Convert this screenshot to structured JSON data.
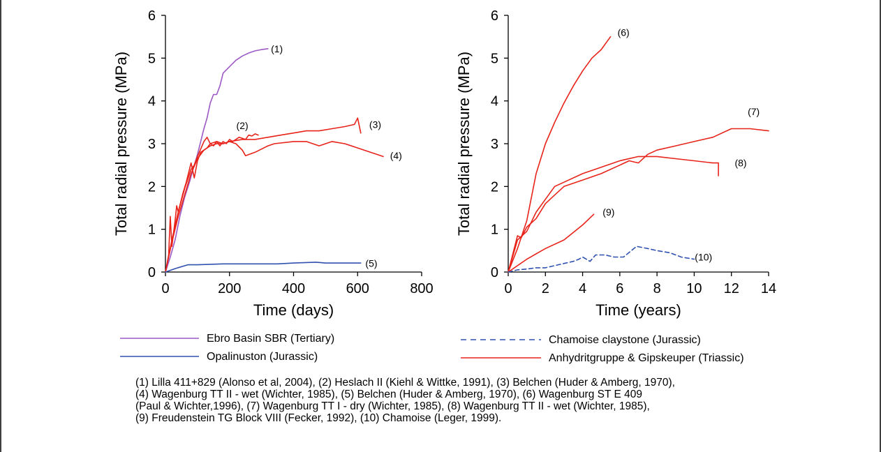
{
  "colors": {
    "ebro": "#9b59c6",
    "opalinus": "#3050b0",
    "chamoise": "#3050b0",
    "anhydrite": "#e8231a"
  },
  "chart_data": [
    {
      "type": "line",
      "xlabel": "Time (days)",
      "ylabel": "Total radial pressure (MPa)",
      "xlim": [
        0,
        800
      ],
      "ylim": [
        0,
        6
      ],
      "xticks": [
        "0",
        "200",
        "400",
        "600",
        "800"
      ],
      "yticks": [
        "0",
        "1",
        "2",
        "3",
        "4",
        "5",
        "6"
      ],
      "series": [
        {
          "name": "Ebro Basin SBR (Tertiary)",
          "group": "ebro",
          "label": "(1)",
          "points": [
            [
              0,
              0
            ],
            [
              15,
              0.35
            ],
            [
              30,
              0.75
            ],
            [
              45,
              1.3
            ],
            [
              60,
              1.75
            ],
            [
              75,
              2.1
            ],
            [
              90,
              2.5
            ],
            [
              100,
              2.75
            ],
            [
              110,
              3.05
            ],
            [
              120,
              3.35
            ],
            [
              130,
              3.6
            ],
            [
              140,
              3.95
            ],
            [
              150,
              4.15
            ],
            [
              160,
              4.15
            ],
            [
              170,
              4.35
            ],
            [
              180,
              4.65
            ],
            [
              200,
              4.8
            ],
            [
              220,
              4.95
            ],
            [
              240,
              5.05
            ],
            [
              260,
              5.12
            ],
            [
              280,
              5.17
            ],
            [
              300,
              5.2
            ],
            [
              320,
              5.22
            ]
          ]
        },
        {
          "name": "Heslach II",
          "group": "anhydrite",
          "label": "(2)",
          "points": [
            [
              0,
              0
            ],
            [
              10,
              0.4
            ],
            [
              15,
              1.3
            ],
            [
              20,
              0.6
            ],
            [
              30,
              1.2
            ],
            [
              35,
              1.55
            ],
            [
              40,
              1.4
            ],
            [
              55,
              1.85
            ],
            [
              65,
              2.1
            ],
            [
              80,
              2.55
            ],
            [
              90,
              2.2
            ],
            [
              100,
              2.6
            ],
            [
              110,
              2.8
            ],
            [
              120,
              2.85
            ],
            [
              130,
              2.9
            ],
            [
              140,
              3.0
            ],
            [
              150,
              2.95
            ],
            [
              160,
              3.05
            ],
            [
              170,
              2.95
            ],
            [
              180,
              3.05
            ],
            [
              190,
              3.0
            ],
            [
              200,
              3.1
            ],
            [
              210,
              3.05
            ],
            [
              230,
              3.15
            ],
            [
              250,
              3.1
            ],
            [
              260,
              3.2
            ],
            [
              270,
              3.18
            ],
            [
              280,
              3.23
            ],
            [
              290,
              3.2
            ]
          ]
        },
        {
          "name": "Belchen",
          "group": "anhydrite",
          "label": "(3)",
          "points": [
            [
              0,
              0
            ],
            [
              20,
              0.7
            ],
            [
              40,
              1.3
            ],
            [
              60,
              1.8
            ],
            [
              80,
              2.3
            ],
            [
              100,
              2.65
            ],
            [
              120,
              2.85
            ],
            [
              140,
              2.95
            ],
            [
              160,
              3.0
            ],
            [
              180,
              3.0
            ],
            [
              200,
              3.05
            ],
            [
              240,
              3.1
            ],
            [
              280,
              3.1
            ],
            [
              320,
              3.15
            ],
            [
              360,
              3.2
            ],
            [
              400,
              3.25
            ],
            [
              440,
              3.3
            ],
            [
              480,
              3.3
            ],
            [
              520,
              3.35
            ],
            [
              560,
              3.4
            ],
            [
              590,
              3.45
            ],
            [
              600,
              3.6
            ],
            [
              610,
              3.25
            ]
          ]
        },
        {
          "name": "Wagenburg TT II - wet",
          "group": "anhydrite",
          "label": "(4)",
          "points": [
            [
              0,
              0
            ],
            [
              20,
              0.75
            ],
            [
              40,
              1.4
            ],
            [
              60,
              1.95
            ],
            [
              80,
              2.4
            ],
            [
              90,
              2.5
            ],
            [
              100,
              2.7
            ],
            [
              120,
              3.05
            ],
            [
              130,
              3.15
            ],
            [
              140,
              3.0
            ],
            [
              160,
              3.05
            ],
            [
              180,
              3.0
            ],
            [
              200,
              3.05
            ],
            [
              220,
              3.0
            ],
            [
              240,
              2.85
            ],
            [
              250,
              2.72
            ],
            [
              280,
              2.8
            ],
            [
              320,
              2.95
            ],
            [
              340,
              3.0
            ],
            [
              400,
              3.05
            ],
            [
              440,
              3.05
            ],
            [
              480,
              2.95
            ],
            [
              520,
              3.05
            ],
            [
              560,
              3.0
            ],
            [
              600,
              2.9
            ],
            [
              640,
              2.8
            ],
            [
              680,
              2.7
            ]
          ]
        },
        {
          "name": "Opalinuston (Jurassic)",
          "group": "opalinus",
          "label": "(5)",
          "points": [
            [
              0,
              0
            ],
            [
              30,
              0.08
            ],
            [
              70,
              0.17
            ],
            [
              100,
              0.17
            ],
            [
              180,
              0.19
            ],
            [
              350,
              0.19
            ],
            [
              400,
              0.21
            ],
            [
              470,
              0.23
            ],
            [
              500,
              0.21
            ],
            [
              540,
              0.21
            ],
            [
              610,
              0.21
            ]
          ]
        }
      ],
      "labels": [
        {
          "text": "(1)",
          "x": 348,
          "y": 5.22
        },
        {
          "text": "(2)",
          "x": 240,
          "y": 3.42
        },
        {
          "text": "(3)",
          "x": 655,
          "y": 3.45
        },
        {
          "text": "(4)",
          "x": 720,
          "y": 2.72
        },
        {
          "text": "(5)",
          "x": 643,
          "y": 0.2
        }
      ]
    },
    {
      "type": "line",
      "xlabel": "Time (years)",
      "ylabel": "Total radial pressure (MPa)",
      "xlim": [
        0,
        14
      ],
      "ylim": [
        0,
        6
      ],
      "xticks": [
        "0",
        "2",
        "4",
        "6",
        "8",
        "10",
        "12",
        "14"
      ],
      "yticks": [
        "0",
        "1",
        "2",
        "3",
        "4",
        "5",
        "6"
      ],
      "series": [
        {
          "name": "Wagenburg ST E 409",
          "group": "anhydrite",
          "label": "(6)",
          "points": [
            [
              0,
              0
            ],
            [
              0.5,
              0.55
            ],
            [
              1,
              1.2
            ],
            [
              1.5,
              2.3
            ],
            [
              2,
              3.0
            ],
            [
              2.5,
              3.5
            ],
            [
              3,
              3.95
            ],
            [
              3.5,
              4.35
            ],
            [
              4,
              4.7
            ],
            [
              4.5,
              5.0
            ],
            [
              5,
              5.2
            ],
            [
              5.5,
              5.5
            ]
          ]
        },
        {
          "name": "Wagenburg TT I - dry",
          "group": "anhydrite",
          "label": "(7)",
          "points": [
            [
              0,
              0
            ],
            [
              0.5,
              0.85
            ],
            [
              0.7,
              0.8
            ],
            [
              1,
              1.05
            ],
            [
              1.5,
              1.25
            ],
            [
              2,
              1.6
            ],
            [
              2.5,
              1.8
            ],
            [
              3,
              2.0
            ],
            [
              4,
              2.15
            ],
            [
              5,
              2.3
            ],
            [
              6,
              2.5
            ],
            [
              6.5,
              2.6
            ],
            [
              7,
              2.55
            ],
            [
              7.5,
              2.75
            ],
            [
              8,
              2.85
            ],
            [
              9,
              2.95
            ],
            [
              10,
              3.05
            ],
            [
              11,
              3.15
            ],
            [
              12,
              3.35
            ],
            [
              13,
              3.35
            ],
            [
              14,
              3.3
            ]
          ]
        },
        {
          "name": "Wagenburg TT II - wet",
          "group": "anhydrite",
          "label": "(8)",
          "points": [
            [
              0,
              0
            ],
            [
              0.5,
              0.75
            ],
            [
              1,
              0.95
            ],
            [
              1.5,
              1.4
            ],
            [
              2,
              1.7
            ],
            [
              2.5,
              2.0
            ],
            [
              3,
              2.1
            ],
            [
              4,
              2.3
            ],
            [
              5,
              2.45
            ],
            [
              6,
              2.6
            ],
            [
              7,
              2.7
            ],
            [
              8,
              2.7
            ],
            [
              9,
              2.65
            ],
            [
              10,
              2.6
            ],
            [
              11,
              2.55
            ],
            [
              11.3,
              2.55
            ],
            [
              11.3,
              2.25
            ]
          ]
        },
        {
          "name": "Freudenstein TG Block VIII",
          "group": "anhydrite",
          "label": "(9)",
          "points": [
            [
              0,
              0
            ],
            [
              1,
              0.3
            ],
            [
              2,
              0.55
            ],
            [
              3,
              0.75
            ],
            [
              4,
              1.1
            ],
            [
              4.6,
              1.35
            ]
          ]
        },
        {
          "name": "Chamoise claystone (Jurassic)",
          "group": "chamoise",
          "dashed": true,
          "label": "(10)",
          "points": [
            [
              0,
              0
            ],
            [
              0.5,
              0.05
            ],
            [
              1,
              0.07
            ],
            [
              1.5,
              0.1
            ],
            [
              2,
              0.1
            ],
            [
              2.5,
              0.15
            ],
            [
              3,
              0.2
            ],
            [
              3.5,
              0.25
            ],
            [
              3.8,
              0.3
            ],
            [
              4,
              0.35
            ],
            [
              4.4,
              0.25
            ],
            [
              4.7,
              0.4
            ],
            [
              5.2,
              0.4
            ],
            [
              5.7,
              0.35
            ],
            [
              6.2,
              0.35
            ],
            [
              6.9,
              0.6
            ],
            [
              7.5,
              0.55
            ],
            [
              8,
              0.5
            ],
            [
              8.7,
              0.45
            ],
            [
              9.3,
              0.35
            ],
            [
              10,
              0.3
            ]
          ]
        }
      ],
      "labels": [
        {
          "text": "(6)",
          "x": 6.2,
          "y": 5.6
        },
        {
          "text": "(7)",
          "x": 13.2,
          "y": 3.75
        },
        {
          "text": "(8)",
          "x": 12.5,
          "y": 2.55
        },
        {
          "text": "(9)",
          "x": 5.4,
          "y": 1.4
        },
        {
          "text": "(10)",
          "x": 10.5,
          "y": 0.35
        }
      ]
    }
  ],
  "legend": [
    {
      "text": "Ebro Basin SBR (Tertiary)",
      "group": "ebro",
      "dashed": false
    },
    {
      "text": "Chamoise claystone (Jurassic)",
      "group": "chamoise",
      "dashed": true
    },
    {
      "text": "Opalinuston (Jurassic)",
      "group": "opalinus",
      "dashed": false
    },
    {
      "text": "Anhydritgruppe & Gipskeuper (Triassic)",
      "group": "anhydrite",
      "dashed": false
    }
  ],
  "caption": "(1) Lilla 411+829 (Alonso et al, 2004), (2) Heslach II (Kiehl & Wittke, 1991), (3) Belchen (Huder & Amberg, 1970),\n(4) Wagenburg TT II - wet (Wichter, 1985), (5) Belchen (Huder & Amberg, 1970), (6) Wagenburg ST E 409\n(Paul & Wichter,1996), (7) Wagenburg TT I - dry (Wichter, 1985), (8) Wagenburg TT II - wet (Wichter, 1985),\n(9) Freudenstein TG Block VIII (Fecker, 1992), (10) Chamoise (Leger, 1999)."
}
